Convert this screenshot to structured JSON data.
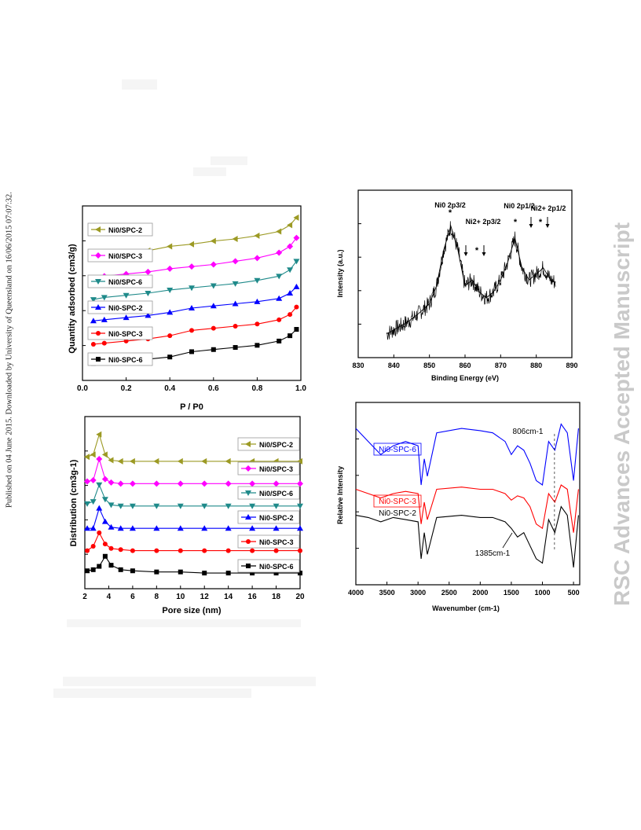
{
  "side_text": {
    "left": "Published on 04 June 2015. Downloaded by University of Queensland on 16/06/2015 07:07:32.",
    "right": "RSC Advances Accepted Manuscript"
  },
  "chart_data": [
    {
      "id": "isotherm",
      "type": "line",
      "xlabel": "P / P0",
      "ylabel": "Quantity adsorbed (cm3/g)",
      "xticks": [
        "0.0",
        "0.2",
        "0.4",
        "0.6",
        "0.8",
        "1.0"
      ],
      "xlim": [
        0,
        1.0
      ],
      "legend_position": "left",
      "series": [
        {
          "name": "Ni0/SPC-2",
          "color": "#9c9a24",
          "marker": "tri-left",
          "x": [
            0.05,
            0.1,
            0.2,
            0.3,
            0.4,
            0.5,
            0.6,
            0.7,
            0.8,
            0.9,
            0.95,
            0.98
          ],
          "y": [
            5.0,
            5.1,
            5.2,
            5.3,
            5.5,
            5.6,
            5.75,
            5.85,
            6.0,
            6.2,
            6.5,
            6.85
          ]
        },
        {
          "name": "Ni0/SPC-3",
          "color": "#ff00ff",
          "marker": "diamond",
          "x": [
            0.05,
            0.1,
            0.2,
            0.3,
            0.4,
            0.5,
            0.6,
            0.7,
            0.8,
            0.9,
            0.95,
            0.98
          ],
          "y": [
            4.0,
            4.1,
            4.2,
            4.3,
            4.45,
            4.55,
            4.65,
            4.8,
            4.95,
            5.2,
            5.5,
            5.9
          ]
        },
        {
          "name": "Ni0/SPC-6",
          "color": "#1f8a8a",
          "marker": "tri-down",
          "x": [
            0.05,
            0.1,
            0.2,
            0.3,
            0.4,
            0.5,
            0.6,
            0.7,
            0.8,
            0.9,
            0.95,
            0.98
          ],
          "y": [
            3.0,
            3.1,
            3.2,
            3.3,
            3.45,
            3.55,
            3.65,
            3.75,
            3.9,
            4.1,
            4.4,
            4.8
          ]
        },
        {
          "name": "Ni0-SPC-2",
          "color": "#0000ff",
          "marker": "tri-up",
          "x": [
            0.05,
            0.1,
            0.2,
            0.3,
            0.4,
            0.5,
            0.6,
            0.7,
            0.8,
            0.9,
            0.95,
            0.98
          ],
          "y": [
            2.0,
            2.05,
            2.15,
            2.25,
            2.4,
            2.6,
            2.7,
            2.8,
            2.9,
            3.05,
            3.3,
            3.6
          ]
        },
        {
          "name": "Ni0-SPC-3",
          "color": "#ff0000",
          "marker": "circle",
          "x": [
            0.05,
            0.1,
            0.2,
            0.3,
            0.4,
            0.5,
            0.6,
            0.7,
            0.8,
            0.9,
            0.95,
            0.98
          ],
          "y": [
            0.9,
            0.95,
            1.05,
            1.15,
            1.3,
            1.55,
            1.65,
            1.75,
            1.85,
            2.05,
            2.3,
            2.65
          ]
        },
        {
          "name": "Ni0-SPC-6",
          "color": "#000000",
          "marker": "square",
          "x": [
            0.05,
            0.1,
            0.2,
            0.3,
            0.4,
            0.5,
            0.6,
            0.7,
            0.8,
            0.9,
            0.95,
            0.98
          ],
          "y": [
            0.0,
            0.05,
            0.1,
            0.2,
            0.3,
            0.55,
            0.65,
            0.75,
            0.85,
            1.05,
            1.3,
            1.6
          ]
        }
      ]
    },
    {
      "id": "xps",
      "type": "line",
      "xlabel": "Binding Energy (eV)",
      "ylabel": "Intensity (a.u.)",
      "xticks": [
        "830",
        "840",
        "850",
        "860",
        "870",
        "880",
        "890"
      ],
      "xlim": [
        830,
        890
      ],
      "annotations": [
        "Ni0 2p3/2",
        "Ni2+ 2p3/2",
        "Ni0 2p1/2",
        "Ni2+ 2p1/2"
      ],
      "series": [
        {
          "name": "",
          "color": "#000000",
          "x": [
            838,
            841,
            844,
            847,
            850,
            852,
            854,
            856,
            858,
            860,
            862,
            864,
            866,
            868,
            870,
            872,
            874,
            876,
            878,
            880,
            882,
            884,
            885.5
          ],
          "y": [
            0.05,
            0.1,
            0.15,
            0.22,
            0.3,
            0.45,
            0.75,
            0.95,
            0.75,
            0.45,
            0.5,
            0.4,
            0.35,
            0.4,
            0.5,
            0.65,
            0.85,
            0.6,
            0.5,
            0.55,
            0.6,
            0.5,
            0.48
          ]
        }
      ]
    },
    {
      "id": "pore",
      "type": "line",
      "xlabel": "Pore size (nm)",
      "ylabel": "Distribution (cm3g-1)",
      "xticks": [
        "2",
        "4",
        "6",
        "8",
        "10",
        "12",
        "14",
        "16",
        "18",
        "20"
      ],
      "xlim": [
        2,
        20
      ],
      "legend_position": "right",
      "series": [
        {
          "name": "Ni0/SPC-2",
          "color": "#9c9a24",
          "marker": "tri-left",
          "x": [
            2.2,
            2.7,
            3.2,
            3.7,
            4.2,
            5,
            6,
            8,
            10,
            12,
            14,
            16,
            18,
            20
          ],
          "y": [
            5.2,
            5.3,
            6.2,
            5.3,
            5.05,
            5.0,
            5.0,
            5.0,
            5.0,
            5.0,
            5.0,
            5.0,
            5.0,
            5.0
          ]
        },
        {
          "name": "Ni0/SPC-3",
          "color": "#ff00ff",
          "marker": "diamond",
          "x": [
            2.2,
            2.7,
            3.2,
            3.7,
            4.2,
            5,
            6,
            8,
            10,
            12,
            14,
            16,
            18,
            20
          ],
          "y": [
            4.1,
            4.15,
            5.1,
            4.2,
            4.05,
            4.0,
            4.0,
            4.0,
            4.0,
            4.0,
            4.0,
            4.0,
            4.0,
            4.0
          ]
        },
        {
          "name": "Ni0/SPC-6",
          "color": "#1f8a8a",
          "marker": "tri-down",
          "x": [
            2.2,
            2.7,
            3.2,
            3.7,
            4.2,
            5,
            6,
            8,
            10,
            12,
            14,
            16,
            18,
            20
          ],
          "y": [
            3.1,
            3.2,
            3.95,
            3.3,
            3.05,
            3.0,
            3.0,
            3.0,
            3.0,
            3.0,
            3.0,
            3.0,
            3.0,
            3.0
          ]
        },
        {
          "name": "Ni0-SPC-2",
          "color": "#0000ff",
          "marker": "tri-up",
          "x": [
            2.2,
            2.7,
            3.2,
            3.7,
            4.2,
            5,
            6,
            8,
            10,
            12,
            14,
            16,
            18,
            20
          ],
          "y": [
            2.0,
            2.0,
            2.9,
            2.3,
            2.05,
            2.0,
            2.0,
            2.0,
            2.0,
            2.0,
            2.0,
            2.0,
            2.0,
            2.0
          ]
        },
        {
          "name": "Ni0-SPC-3",
          "color": "#ff0000",
          "marker": "circle",
          "x": [
            2.2,
            2.7,
            3.2,
            3.7,
            4.2,
            5,
            6,
            8,
            10,
            12,
            14,
            16,
            18,
            20
          ],
          "y": [
            1.0,
            1.2,
            1.8,
            1.3,
            1.1,
            1.05,
            1.0,
            1.0,
            1.0,
            1.0,
            1.0,
            1.0,
            1.0,
            1.0
          ]
        },
        {
          "name": "Ni0-SPC-6",
          "color": "#000000",
          "marker": "square",
          "x": [
            2.2,
            2.7,
            3.2,
            3.7,
            4.2,
            5,
            6,
            8,
            10,
            12,
            14,
            16,
            18,
            20
          ],
          "y": [
            0.1,
            0.15,
            0.3,
            0.75,
            0.35,
            0.15,
            0.1,
            0.05,
            0.05,
            0.0,
            0.0,
            0.0,
            0.0,
            0.0
          ]
        }
      ]
    },
    {
      "id": "ftir",
      "type": "line",
      "xlabel": "Wavenumber (cm-1)",
      "ylabel": "Relative Intensity",
      "xticks": [
        "4000",
        "3500",
        "3000",
        "2500",
        "2000",
        "1500",
        "1000",
        "500"
      ],
      "xlim": [
        4000,
        400
      ],
      "annotations": [
        "806cm-1",
        "1385cm-1"
      ],
      "series": [
        {
          "name": "Ni0-SPC-6",
          "color": "#0000ff",
          "x": [
            4000,
            3800,
            3600,
            3400,
            3200,
            3000,
            2950,
            2900,
            2850,
            2700,
            2300,
            2000,
            1800,
            1600,
            1500,
            1400,
            1300,
            1200,
            1100,
            1000,
            900,
            800,
            700,
            600,
            500,
            420
          ],
          "y": [
            3.0,
            2.7,
            2.4,
            2.6,
            2.7,
            2.6,
            1.7,
            2.3,
            1.9,
            2.9,
            3.0,
            2.95,
            2.9,
            2.7,
            2.4,
            2.6,
            2.5,
            2.2,
            1.8,
            1.7,
            2.7,
            2.5,
            3.1,
            2.9,
            1.8,
            3.0
          ]
        },
        {
          "name": "Ni0-SPC-3",
          "color": "#ff0000",
          "x": [
            4000,
            3800,
            3600,
            3400,
            3200,
            3000,
            2950,
            2900,
            2850,
            2700,
            2300,
            2000,
            1800,
            1600,
            1500,
            1400,
            1300,
            1200,
            1100,
            1000,
            900,
            800,
            700,
            600,
            500,
            420
          ],
          "y": [
            1.6,
            1.5,
            1.4,
            1.5,
            1.55,
            1.5,
            0.8,
            1.3,
            0.9,
            1.6,
            1.65,
            1.6,
            1.6,
            1.5,
            1.35,
            1.45,
            1.4,
            1.2,
            0.8,
            0.7,
            1.5,
            1.3,
            1.7,
            1.6,
            0.6,
            1.6
          ]
        },
        {
          "name": "Ni0-SPC-2",
          "color": "#000000",
          "x": [
            4000,
            3800,
            3600,
            3400,
            3200,
            3000,
            2950,
            2900,
            2850,
            2700,
            2300,
            2000,
            1800,
            1600,
            1500,
            1400,
            1300,
            1200,
            1100,
            1000,
            900,
            800,
            700,
            600,
            500,
            420
          ],
          "y": [
            1.0,
            0.95,
            0.85,
            0.95,
            0.9,
            0.85,
            0.0,
            0.6,
            0.1,
            0.95,
            1.0,
            0.95,
            0.95,
            0.85,
            0.7,
            0.5,
            0.6,
            0.3,
            0.0,
            -0.1,
            0.9,
            0.6,
            1.2,
            1.0,
            -0.2,
            1.0
          ]
        }
      ]
    }
  ]
}
